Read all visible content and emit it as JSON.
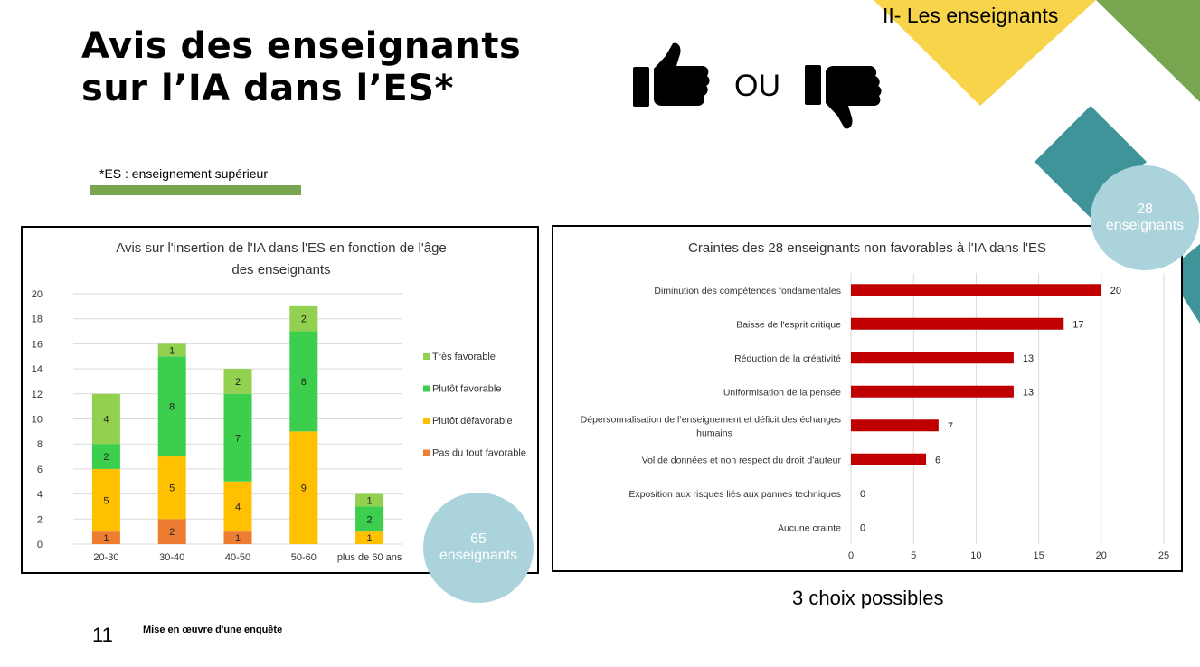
{
  "slide": {
    "title_line1": "Avis des enseignants",
    "title_line2": "sur l’IA dans l’ES*",
    "section_label": "II- Les enseignants",
    "footnote": "*ES : enseignement supérieur",
    "ou_label": "OU",
    "slide_number": "11",
    "footer_text": "Mise en œuvre d'une enquête",
    "choices_note": "3 choix possibles",
    "circle_left_number": "65",
    "circle_left_label": "enseignants",
    "circle_right_number": "28",
    "circle_right_label": "enseignants",
    "icons": [
      "thumbs-up-icon",
      "thumbs-down-icon"
    ]
  },
  "colors": {
    "tres_favorable": "#92d050",
    "plutot_favorable": "#3ccf4e",
    "plutot_defavorable": "#ffc000",
    "pas_du_tout": "#ed7d31",
    "bar_red": "#c00000",
    "circle": "#abd3dc",
    "accent_green": "#78a54f",
    "accent_yellow": "#f7d44a",
    "accent_teal": "#3f9499"
  },
  "chart_data": [
    {
      "type": "bar",
      "stacked": true,
      "title_line1": "Avis sur l'insertion de l'IA dans l'ES en fonction de l'âge",
      "title_line2": "des enseignants",
      "categories": [
        "20-30",
        "30-40",
        "40-50",
        "50-60",
        "plus de 60 ans"
      ],
      "series": [
        {
          "name": "Pas du tout favorable",
          "values": [
            1,
            2,
            1,
            0,
            0
          ]
        },
        {
          "name": "Plutôt défavorable",
          "values": [
            5,
            5,
            4,
            9,
            1
          ]
        },
        {
          "name": "Plutôt favorable",
          "values": [
            2,
            8,
            7,
            8,
            2
          ]
        },
        {
          "name": "Très favorable",
          "values": [
            4,
            1,
            2,
            2,
            1
          ]
        }
      ],
      "legend_order": [
        "Très favorable",
        "Plutôt favorable",
        "Plutôt défavorable",
        "Pas du tout favorable"
      ],
      "ylim": [
        0,
        20
      ],
      "yticks": [
        "0",
        "2",
        "4",
        "6",
        "8",
        "10",
        "12",
        "14",
        "16",
        "18",
        "20"
      ],
      "grid": true,
      "legend_position": "right"
    },
    {
      "type": "bar",
      "orientation": "horizontal",
      "title": "Craintes des 28 enseignants non favorables à l'IA dans l'ES",
      "categories": [
        [
          "Diminution des compétences fondamentales"
        ],
        [
          "Baisse de l'esprit critique"
        ],
        [
          "Réduction de la créativité"
        ],
        [
          "Uniformisation de la pensée"
        ],
        [
          "Dépersonnalisation de l’enseignement et déficit des échanges",
          "humains"
        ],
        [
          "Vol de données et non respect du droit d'auteur"
        ],
        [
          "Exposition aux risques liés aux pannes techniques"
        ],
        [
          "Aucune crainte"
        ]
      ],
      "values": [
        20,
        17,
        13,
        13,
        7,
        6,
        0,
        0
      ],
      "xlim": [
        0,
        25
      ],
      "xticks": [
        "0",
        "5",
        "10",
        "15",
        "20",
        "25"
      ],
      "grid": true
    }
  ]
}
